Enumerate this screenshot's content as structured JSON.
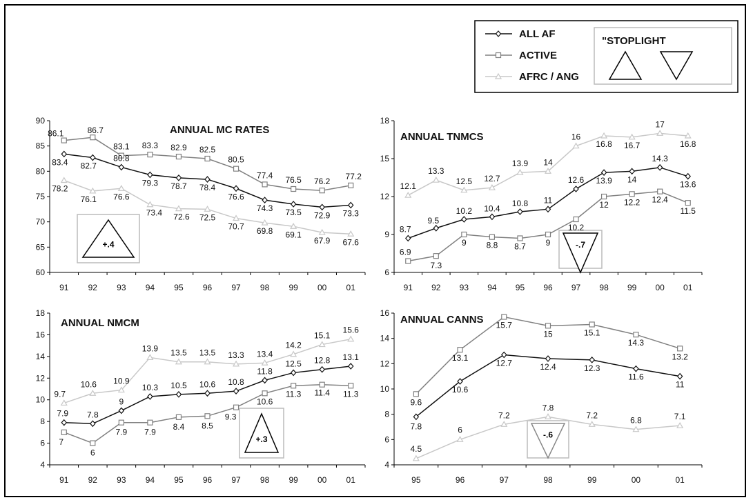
{
  "legend": {
    "entries": [
      {
        "label": "ALL AF",
        "color": "#111111",
        "marker": "diamond"
      },
      {
        "label": "ACTIVE",
        "color": "#808080",
        "marker": "square"
      },
      {
        "label": "AFRC / ANG",
        "color": "#c8c8c8",
        "marker": "triangle"
      }
    ],
    "stoplight_label": "\"STOPLIGHT"
  },
  "colors": {
    "all_af": "#111111",
    "active": "#808080",
    "afrc": "#c8c8c8"
  },
  "chart_data": [
    {
      "type": "line",
      "title": "ANNUAL MC RATES",
      "categories": [
        "91",
        "92",
        "93",
        "94",
        "95",
        "96",
        "97",
        "98",
        "99",
        "00",
        "01"
      ],
      "ylim": [
        60,
        90
      ],
      "yticks": [
        60,
        65,
        70,
        75,
        80,
        85,
        90
      ],
      "series": [
        {
          "name": "ACTIVE",
          "values": [
            86.1,
            86.7,
            83.1,
            83.3,
            82.9,
            82.5,
            80.5,
            77.4,
            76.5,
            76.2,
            77.2
          ]
        },
        {
          "name": "ALL AF",
          "values": [
            83.4,
            82.7,
            80.8,
            79.3,
            78.7,
            78.4,
            76.6,
            74.3,
            73.5,
            72.9,
            73.3
          ]
        },
        {
          "name": "AFRC / ANG",
          "values": [
            78.2,
            76.1,
            76.6,
            73.4,
            72.6,
            72.5,
            70.7,
            69.8,
            69.1,
            67.9,
            67.6
          ]
        }
      ],
      "stoplight": {
        "label": "+.4",
        "direction": "up"
      }
    },
    {
      "type": "line",
      "title": "ANNUAL TNMCS",
      "categories": [
        "91",
        "92",
        "93",
        "94",
        "95",
        "96",
        "97",
        "98",
        "99",
        "00",
        "01"
      ],
      "ylim": [
        6,
        18
      ],
      "yticks": [
        6,
        9,
        12,
        15,
        18
      ],
      "series": [
        {
          "name": "AFRC / ANG",
          "values": [
            12.1,
            13.3,
            12.5,
            12.7,
            13.9,
            14,
            16,
            16.8,
            16.7,
            17,
            16.8
          ]
        },
        {
          "name": "ALL AF",
          "values": [
            8.7,
            9.5,
            10.2,
            10.4,
            10.8,
            11,
            12.6,
            13.9,
            14,
            14.3,
            13.6
          ]
        },
        {
          "name": "ACTIVE",
          "values": [
            6.9,
            7.3,
            9,
            8.8,
            8.7,
            9,
            10.2,
            12,
            12.2,
            12.4,
            11.5
          ]
        }
      ],
      "stoplight": {
        "label": "-.7",
        "direction": "down"
      }
    },
    {
      "type": "line",
      "title": "ANNUAL NMCM",
      "categories": [
        "91",
        "92",
        "93",
        "94",
        "95",
        "96",
        "97",
        "98",
        "99",
        "00",
        "01"
      ],
      "ylim": [
        4,
        18
      ],
      "yticks": [
        4,
        6,
        8,
        10,
        12,
        14,
        16,
        18
      ],
      "series": [
        {
          "name": "AFRC / ANG",
          "values": [
            9.7,
            10.6,
            10.9,
            13.9,
            13.5,
            13.5,
            13.3,
            13.4,
            14.2,
            15.1,
            15.6
          ]
        },
        {
          "name": "ALL AF",
          "values": [
            7.9,
            7.8,
            9,
            10.3,
            10.5,
            10.6,
            10.8,
            11.8,
            12.5,
            12.8,
            13.1
          ]
        },
        {
          "name": "ACTIVE",
          "values": [
            7,
            6,
            7.9,
            7.9,
            8.4,
            8.5,
            9.3,
            10.6,
            11.3,
            11.4,
            11.3
          ]
        }
      ],
      "stoplight": {
        "label": "+.3",
        "direction": "up"
      }
    },
    {
      "type": "line",
      "title": "ANNUAL CANNS",
      "categories": [
        "95",
        "96",
        "97",
        "98",
        "99",
        "00",
        "01"
      ],
      "ylim": [
        4,
        16
      ],
      "yticks": [
        4,
        6,
        8,
        10,
        12,
        14,
        16
      ],
      "series": [
        {
          "name": "ACTIVE",
          "values": [
            9.6,
            13.1,
            15.7,
            15,
            15.1,
            14.3,
            13.2
          ]
        },
        {
          "name": "ALL AF",
          "values": [
            7.8,
            10.6,
            12.7,
            12.4,
            12.3,
            11.6,
            11
          ]
        },
        {
          "name": "AFRC / ANG",
          "values": [
            4.5,
            6,
            7.2,
            7.8,
            7.2,
            6.8,
            7.1
          ]
        }
      ],
      "stoplight": {
        "label": "-.6",
        "direction": "down"
      }
    }
  ]
}
